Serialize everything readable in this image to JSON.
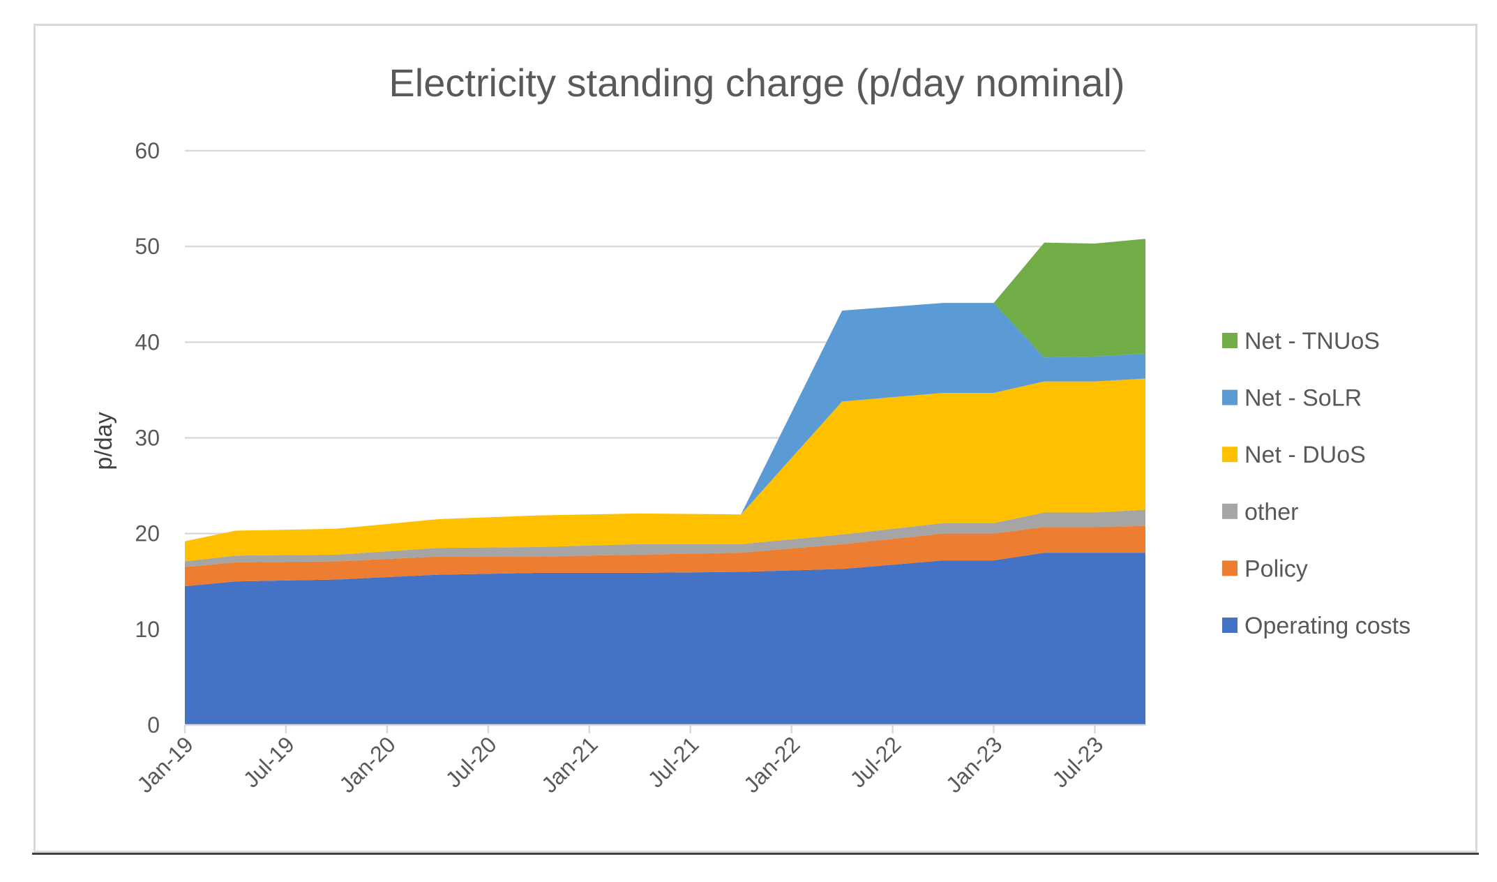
{
  "chart_data": {
    "type": "area",
    "stacked": true,
    "title": "Electricity standing charge (p/day nominal)",
    "xlabel": "",
    "ylabel": "p/day",
    "ylim": [
      0,
      60
    ],
    "yticks": [
      0,
      10,
      20,
      30,
      40,
      50,
      60
    ],
    "x_tick_labels": [
      "Jan-19",
      "Jul-19",
      "Jan-20",
      "Jul-20",
      "Jan-21",
      "Jul-21",
      "Jan-22",
      "Jul-22",
      "Jan-23",
      "Jul-23"
    ],
    "x": [
      "Jan-19",
      "Apr-19",
      "Oct-19",
      "Apr-20",
      "Oct-20",
      "Apr-21",
      "Oct-21",
      "Apr-22",
      "Oct-22",
      "Jan-23",
      "Apr-23",
      "Jul-23",
      "Oct-23"
    ],
    "grid": true,
    "legend_position": "right",
    "series": [
      {
        "name": "Operating costs",
        "color": "#4472c4",
        "values": [
          14.5,
          15.0,
          15.2,
          15.7,
          15.9,
          15.9,
          16.0,
          16.3,
          17.2,
          17.2,
          18.0,
          18.0,
          18.0
        ]
      },
      {
        "name": "Policy",
        "color": "#ed7d31",
        "values": [
          2.0,
          2.0,
          1.9,
          1.9,
          1.7,
          1.9,
          2.0,
          2.6,
          2.8,
          2.8,
          2.7,
          2.7,
          2.8
        ]
      },
      {
        "name": "other",
        "color": "#a5a5a5",
        "values": [
          0.6,
          0.7,
          0.7,
          0.9,
          1.0,
          1.1,
          0.9,
          1.0,
          1.1,
          1.1,
          1.5,
          1.5,
          1.7
        ]
      },
      {
        "name": "Net - DUoS",
        "color": "#ffc000",
        "values": [
          2.1,
          2.6,
          2.7,
          3.0,
          3.3,
          3.2,
          3.1,
          13.9,
          13.6,
          13.6,
          13.7,
          13.7,
          13.7
        ]
      },
      {
        "name": "Net - SoLR",
        "color": "#5b9bd5",
        "values": [
          0,
          0,
          0,
          0,
          0,
          0,
          0,
          9.5,
          9.4,
          9.4,
          2.5,
          2.6,
          2.6
        ]
      },
      {
        "name": "Net - TNUoS",
        "color": "#70ad47",
        "values": [
          0,
          0,
          0,
          0,
          0,
          0,
          0,
          0,
          0,
          0,
          12.0,
          11.8,
          12.0
        ]
      }
    ],
    "legend_order": [
      "Net - TNUoS",
      "Net - SoLR",
      "Net - DUoS",
      "other",
      "Policy",
      "Operating costs"
    ]
  }
}
